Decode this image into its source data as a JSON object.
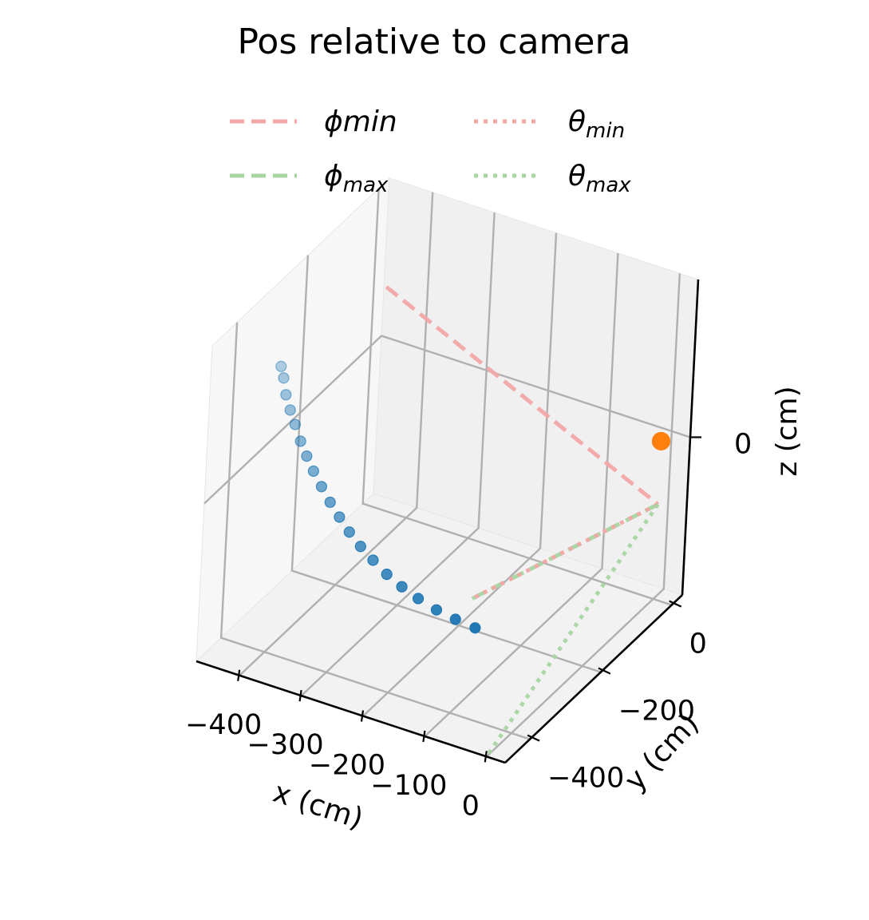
{
  "chart_data": {
    "type": "scatter3d",
    "title": "Pos relative to camera",
    "xlabel": "x (cm)",
    "ylabel": "y (cm)",
    "zlabel": "z (cm)",
    "xlim": [
      -470,
      30
    ],
    "ylim": [
      -470,
      30
    ],
    "zlim": [
      -150,
      150
    ],
    "x_ticks": [
      -400,
      -300,
      -200,
      -100,
      0
    ],
    "x_tick_labels": [
      "−400",
      "−300",
      "−200",
      "−100",
      "0"
    ],
    "y_ticks": [
      -400,
      -200,
      0
    ],
    "y_tick_labels": [
      "−400",
      "−200",
      "0"
    ],
    "z_ticks": [
      0
    ],
    "z_tick_labels": [
      "0"
    ],
    "grid": true,
    "legend_position": "top",
    "legend": [
      {
        "base": "ϕ",
        "rest": "min",
        "sub": "",
        "style": "dashed",
        "color": "#f4a7a7"
      },
      {
        "base": "θ",
        "rest": "",
        "sub": "min",
        "style": "dotted",
        "color": "#f4a7a7"
      },
      {
        "base": "ϕ",
        "rest": "",
        "sub": "max",
        "style": "dashed",
        "color": "#a8d5a2"
      },
      {
        "base": "θ",
        "rest": "",
        "sub": "max",
        "style": "dotted",
        "color": "#a8d5a2"
      }
    ],
    "series": [
      {
        "color": "#1f77b4",
        "points": [
          {
            "x": -450,
            "y": -300,
            "z": 80
          },
          {
            "x": -445,
            "y": -300,
            "z": 70
          },
          {
            "x": -440,
            "y": -300,
            "z": 55
          },
          {
            "x": -432,
            "y": -300,
            "z": 42
          },
          {
            "x": -423,
            "y": -300,
            "z": 30
          },
          {
            "x": -413,
            "y": -300,
            "z": 16
          },
          {
            "x": -402,
            "y": -300,
            "z": 4
          },
          {
            "x": -390,
            "y": -300,
            "z": -8
          },
          {
            "x": -376,
            "y": -300,
            "z": -20
          },
          {
            "x": -361,
            "y": -300,
            "z": -32
          },
          {
            "x": -345,
            "y": -300,
            "z": -43
          },
          {
            "x": -328,
            "y": -300,
            "z": -54
          },
          {
            "x": -309,
            "y": -300,
            "z": -64
          },
          {
            "x": -288,
            "y": -300,
            "z": -73
          },
          {
            "x": -265,
            "y": -300,
            "z": -82
          },
          {
            "x": -240,
            "y": -300,
            "z": -89
          },
          {
            "x": -213,
            "y": -300,
            "z": -95
          },
          {
            "x": -183,
            "y": -300,
            "z": -100
          },
          {
            "x": -152,
            "y": -300,
            "z": -103
          },
          {
            "x": -120,
            "y": -300,
            "z": -105
          }
        ]
      },
      {
        "color": "#ff7f0e",
        "points": [
          {
            "x": 0,
            "y": 0,
            "z": 0
          }
        ]
      }
    ],
    "lines": [
      {
        "name": "ϕmin",
        "style": "dashed",
        "color": "#f4a7a7",
        "from": {
          "x": -450,
          "y": 0,
          "z": 60
        },
        "to": {
          "x": 0,
          "y": 0,
          "z": -60
        }
      },
      {
        "name": "ϕmax",
        "style": "dashed",
        "color": "#a8d5a2",
        "from": {
          "x": 0,
          "y": 0,
          "z": -60
        },
        "to": {
          "x": -130,
          "y": -300,
          "z": -80
        }
      },
      {
        "name": "θmin",
        "style": "dotted",
        "color": "#f4a7a7",
        "from": {
          "x": 0,
          "y": 0,
          "z": -60
        },
        "to": {
          "x": -130,
          "y": -300,
          "z": -80
        }
      },
      {
        "name": "θmax",
        "style": "dotted",
        "color": "#a8d5a2",
        "from": {
          "x": 0,
          "y": 0,
          "z": -60
        },
        "to": {
          "x": 0,
          "y": -470,
          "z": -150
        }
      }
    ]
  }
}
